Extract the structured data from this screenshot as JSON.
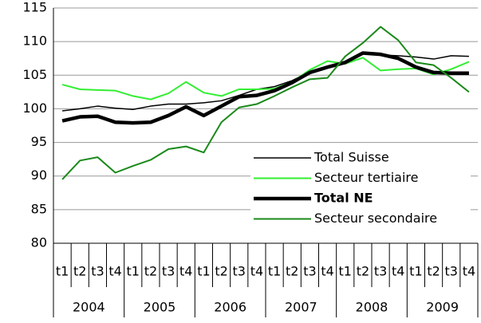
{
  "chart_data": {
    "type": "line",
    "categories": [
      "t1",
      "t2",
      "t3",
      "t4",
      "t1",
      "t2",
      "t3",
      "t4",
      "t1",
      "t2",
      "t3",
      "t4",
      "t1",
      "t2",
      "t3",
      "t4",
      "t1",
      "t2",
      "t3",
      "t4",
      "t1",
      "t2",
      "t3",
      "t4"
    ],
    "years": [
      "2004",
      "2005",
      "2006",
      "2007",
      "2008",
      "2009"
    ],
    "ylim": [
      80,
      115
    ],
    "yticks": [
      80,
      85,
      90,
      95,
      100,
      105,
      110,
      115
    ],
    "grid": true,
    "legend": "lower right",
    "series": [
      {
        "name": "Total Suisse",
        "color": "#000000",
        "width": 1.5,
        "values": [
          99.7,
          100.0,
          100.4,
          100.1,
          99.9,
          100.4,
          100.7,
          100.7,
          100.9,
          101.2,
          102.0,
          102.9,
          103.3,
          104.2,
          105.5,
          106.3,
          107.0,
          108.2,
          108.0,
          107.9,
          107.7,
          107.4,
          107.9,
          107.8
        ]
      },
      {
        "name": "Secteur tertiaire",
        "color": "#33ee33",
        "width": 2,
        "values": [
          103.6,
          102.9,
          102.8,
          102.7,
          101.9,
          101.4,
          102.3,
          104.0,
          102.4,
          101.9,
          102.9,
          102.9,
          103.0,
          104.0,
          105.8,
          107.1,
          106.7,
          107.6,
          105.7,
          105.9,
          106.0,
          105.1,
          105.9,
          107.0
        ]
      },
      {
        "name": "Total NE",
        "color": "#000000",
        "width": 4.5,
        "values": [
          98.2,
          98.8,
          98.9,
          98.0,
          97.9,
          98.0,
          99.0,
          100.3,
          99.0,
          100.4,
          101.8,
          102.0,
          102.7,
          103.9,
          105.4,
          106.2,
          106.9,
          108.3,
          108.1,
          107.5,
          106.2,
          105.4,
          105.3,
          105.3
        ]
      },
      {
        "name": "Secteur secondaire",
        "color": "#1a8a1a",
        "width": 2,
        "values": [
          89.5,
          92.3,
          92.8,
          90.5,
          91.5,
          92.4,
          94.0,
          94.4,
          93.5,
          98.0,
          100.2,
          100.7,
          101.9,
          103.2,
          104.4,
          104.6,
          107.8,
          109.8,
          112.2,
          110.2,
          106.9,
          106.5,
          104.6,
          102.5
        ]
      }
    ]
  }
}
